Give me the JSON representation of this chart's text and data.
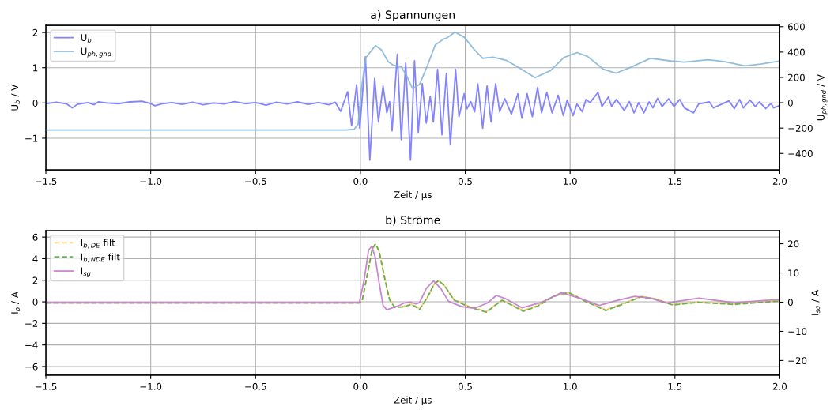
{
  "chart_data": [
    {
      "type": "line",
      "title": "a) Spannungen",
      "xlabel": "Zeit / µs",
      "ylabel": "U$_{b}$ / V",
      "y2label": "U$_{ph,gnd}$ / V",
      "xlim": [
        -1.5,
        2.0
      ],
      "xticks": [
        {
          "value": -1.5,
          "label": "−1.5"
        },
        {
          "value": -1.0,
          "label": "−1.0"
        },
        {
          "value": -0.5,
          "label": "−0.5"
        },
        {
          "value": 0,
          "label": "0.0"
        },
        {
          "value": 0.5,
          "label": "0.5"
        },
        {
          "value": 1.0,
          "label": "1.0"
        },
        {
          "value": 1.5,
          "label": "1.5"
        },
        {
          "value": 2.0,
          "label": "2.0"
        }
      ],
      "ylim": [
        -1.9,
        2.2
      ],
      "yticks": [
        -1,
        0,
        1,
        2
      ],
      "y2lim": [
        -530,
        610
      ],
      "y2ticks": [
        -400,
        -200,
        0,
        200,
        400,
        600
      ],
      "grid": true,
      "legend": "top left",
      "series": [
        {
          "name": "U$_{b}$",
          "color": "#7777ff",
          "line_style": "solid",
          "x": [
            -1.5,
            -1.45,
            -1.4,
            -1.374,
            -1.35,
            -1.3,
            -1.27,
            -1.25,
            -1.21,
            -1.15,
            -1.1,
            -1.042,
            -1.0,
            -0.98,
            -0.95,
            -0.9,
            -0.85,
            -0.8,
            -0.75,
            -0.7,
            -0.65,
            -0.6,
            -0.55,
            -0.5,
            -0.45,
            -0.4,
            -0.35,
            -0.3,
            -0.25,
            -0.2,
            -0.15,
            -0.12,
            -0.094,
            -0.061,
            -0.042,
            -0.018,
            -0.003,
            0.024,
            0.045,
            0.068,
            0.086,
            0.108,
            0.126,
            0.139,
            0.151,
            0.176,
            0.195,
            0.216,
            0.239,
            0.258,
            0.276,
            0.295,
            0.314,
            0.333,
            0.348,
            0.368,
            0.389,
            0.41,
            0.429,
            0.454,
            0.47,
            0.495,
            0.508,
            0.526,
            0.545,
            0.56,
            0.583,
            0.604,
            0.623,
            0.645,
            0.664,
            0.689,
            0.72,
            0.751,
            0.77,
            0.795,
            0.82,
            0.845,
            0.864,
            0.889,
            0.914,
            0.943,
            0.968,
            0.986,
            1.014,
            1.033,
            1.058,
            1.076,
            1.095,
            1.133,
            1.152,
            1.183,
            1.198,
            1.221,
            1.258,
            1.283,
            1.305,
            1.327,
            1.352,
            1.377,
            1.395,
            1.417,
            1.439,
            1.47,
            1.495,
            1.523,
            1.545,
            1.589,
            1.613,
            1.664,
            1.683,
            1.758,
            1.783,
            1.808,
            1.826,
            1.858,
            1.883,
            1.902,
            1.933,
            1.958,
            1.97,
            2.0
          ],
          "values": [
            -0.02,
            0.02,
            -0.03,
            -0.14,
            -0.04,
            0.01,
            -0.05,
            0.03,
            0.0,
            -0.02,
            0.03,
            0.05,
            -0.02,
            -0.08,
            -0.03,
            0.01,
            -0.04,
            0.02,
            -0.05,
            0.0,
            -0.03,
            0.04,
            -0.02,
            0.01,
            -0.06,
            0.02,
            -0.03,
            0.03,
            -0.04,
            0.01,
            -0.05,
            0.02,
            -0.24,
            0.32,
            -0.65,
            0.52,
            -0.72,
            1.31,
            -1.62,
            0.7,
            -0.54,
            0.48,
            -0.28,
            0.04,
            -0.79,
            1.38,
            -1.04,
            1.13,
            -1.62,
            1.2,
            -0.83,
            0.55,
            -0.57,
            0.19,
            -0.54,
            0.95,
            -0.9,
            0.84,
            -1.19,
            0.95,
            -0.39,
            0.26,
            -0.17,
            0.04,
            -0.25,
            0.54,
            -0.72,
            0.48,
            -0.54,
            0.55,
            -0.25,
            0.12,
            -0.32,
            0.26,
            -0.43,
            0.26,
            -0.39,
            0.44,
            -0.28,
            0.3,
            -0.28,
            0.22,
            -0.36,
            0.08,
            -0.36,
            -0.03,
            -0.25,
            0.1,
            0.01,
            0.3,
            -0.1,
            0.17,
            -0.1,
            0.1,
            -0.21,
            0.04,
            -0.28,
            0.01,
            -0.28,
            0.03,
            -0.14,
            0.13,
            -0.1,
            0.12,
            -0.1,
            0.1,
            -0.14,
            -0.28,
            -0.03,
            0.03,
            -0.14,
            0.06,
            -0.16,
            0.1,
            -0.14,
            0.08,
            -0.1,
            0.03,
            -0.16,
            -0.01,
            -0.14,
            -0.07
          ]
        },
        {
          "name": "U$_{ph,gnd}$",
          "color": "#86b6d9",
          "line_style": "solid",
          "axis": "y2",
          "x": [
            -1.5,
            -0.07,
            -0.03,
            -0.011,
            0.005,
            0.026,
            0.045,
            0.072,
            0.101,
            0.132,
            0.158,
            0.195,
            0.22,
            0.248,
            0.282,
            0.32,
            0.357,
            0.395,
            0.414,
            0.451,
            0.495,
            0.545,
            0.583,
            0.633,
            0.695,
            0.758,
            0.833,
            0.908,
            0.97,
            1.033,
            1.083,
            1.158,
            1.22,
            1.283,
            1.383,
            1.483,
            1.545,
            1.658,
            1.733,
            1.833,
            1.908,
            2.0
          ],
          "values": [
            -215,
            -215,
            -210,
            -170,
            113,
            356,
            396,
            450,
            416,
            325,
            295,
            285,
            214,
            113,
            144,
            295,
            456,
            501,
            513,
            558,
            517,
            416,
            351,
            359,
            335,
            275,
            198,
            255,
            356,
            396,
            366,
            265,
            234,
            275,
            350,
            329,
            321,
            339,
            325,
            291,
            305,
            329
          ]
        }
      ]
    },
    {
      "type": "line",
      "title": "b) Ströme",
      "xlabel": "Zeit / µs",
      "ylabel": "I$_{b}$ / A",
      "y2label": "I$_{sg}$ / A",
      "xlim": [
        -1.5,
        2.0
      ],
      "xticks": [
        {
          "value": -1.5,
          "label": "−1.5"
        },
        {
          "value": -1.0,
          "label": "−1.0"
        },
        {
          "value": -0.5,
          "label": "−0.5"
        },
        {
          "value": 0,
          "label": "0.0"
        },
        {
          "value": 0.5,
          "label": "0.5"
        },
        {
          "value": 1.0,
          "label": "1.0"
        },
        {
          "value": 1.5,
          "label": "1.5"
        },
        {
          "value": 2.0,
          "label": "2.0"
        }
      ],
      "ylim": [
        -6.8,
        6.6
      ],
      "yticks": [
        -6,
        -4,
        -2,
        0,
        2,
        4,
        6
      ],
      "y2lim": [
        -25,
        24.5
      ],
      "y2ticks": [
        -20,
        -10,
        0,
        10,
        20
      ],
      "grid": true,
      "legend": "top left",
      "series": [
        {
          "name": "I$_{b,DE}$ filt",
          "color": "#ffc45c",
          "line_style": "dashed",
          "x": [
            -1.5,
            -0.005,
            0.008,
            0.033,
            0.057,
            0.072,
            0.089,
            0.114,
            0.139,
            0.164,
            0.201,
            0.245,
            0.282,
            0.32,
            0.351,
            0.373,
            0.401,
            0.445,
            0.508,
            0.558,
            0.601,
            0.645,
            0.676,
            0.72,
            0.776,
            0.845,
            0.92,
            0.97,
            1.0,
            1.07,
            1.17,
            1.258,
            1.339,
            1.408,
            1.489,
            1.608,
            1.783,
            1.908,
            2.0
          ],
          "values": [
            -0.1,
            -0.1,
            0.05,
            2.5,
            4.9,
            5.3,
            4.7,
            2.4,
            0.25,
            -0.45,
            -0.45,
            -0.2,
            -0.65,
            0.4,
            1.6,
            1.95,
            1.5,
            0.25,
            -0.35,
            -0.65,
            -0.9,
            -0.25,
            0.15,
            -0.25,
            -0.8,
            -0.35,
            0.5,
            0.82,
            0.82,
            0.1,
            -0.75,
            -0.12,
            0.5,
            0.28,
            -0.25,
            0.0,
            -0.2,
            0.0,
            0.1
          ]
        },
        {
          "name": "I$_{b,NDE}$ filt",
          "color": "#5aaa48",
          "line_style": "dashed",
          "x": [
            -1.5,
            -0.005,
            0.008,
            0.033,
            0.057,
            0.072,
            0.089,
            0.114,
            0.139,
            0.164,
            0.201,
            0.245,
            0.282,
            0.32,
            0.351,
            0.373,
            0.401,
            0.445,
            0.508,
            0.558,
            0.601,
            0.645,
            0.676,
            0.72,
            0.776,
            0.845,
            0.92,
            0.97,
            1.0,
            1.07,
            1.17,
            1.258,
            1.339,
            1.408,
            1.489,
            1.608,
            1.783,
            1.908,
            2.0
          ],
          "values": [
            -0.1,
            -0.1,
            0.07,
            2.57,
            4.95,
            5.38,
            4.71,
            2.33,
            0.19,
            -0.52,
            -0.48,
            -0.24,
            -0.71,
            0.43,
            1.62,
            1.98,
            1.5,
            0.19,
            -0.4,
            -0.71,
            -0.95,
            -0.29,
            0.14,
            -0.29,
            -0.88,
            -0.4,
            0.48,
            0.79,
            0.79,
            0.07,
            -0.81,
            -0.17,
            0.48,
            0.24,
            -0.29,
            -0.05,
            -0.24,
            -0.05,
            0.07
          ]
        },
        {
          "name": "I$_{sg}$",
          "color": "#c27bc8",
          "line_style": "solid",
          "axis": "y2",
          "x": [
            -1.5,
            -0.005,
            0.018,
            0.039,
            0.054,
            0.07,
            0.089,
            0.108,
            0.126,
            0.158,
            0.183,
            0.207,
            0.239,
            0.264,
            0.282,
            0.314,
            0.349,
            0.383,
            0.42,
            0.483,
            0.545,
            0.608,
            0.648,
            0.695,
            0.77,
            0.858,
            0.958,
            1.045,
            1.139,
            1.22,
            1.308,
            1.383,
            1.458,
            1.614,
            1.783,
            1.908,
            2.0
          ],
          "values": [
            -0.2,
            -0.2,
            7.7,
            17.8,
            19.1,
            15.6,
            6.8,
            -1.1,
            -2.6,
            -1.8,
            -1.2,
            -0.3,
            0.0,
            -0.6,
            -0.2,
            4.7,
            7.3,
            4.7,
            0.3,
            -1.5,
            -2.1,
            -0.2,
            2.3,
            1.1,
            -1.9,
            -0.2,
            3.2,
            1.4,
            -1.1,
            0.5,
            2.0,
            1.4,
            -0.3,
            1.4,
            -0.2,
            0.5,
            0.9
          ]
        }
      ]
    }
  ]
}
